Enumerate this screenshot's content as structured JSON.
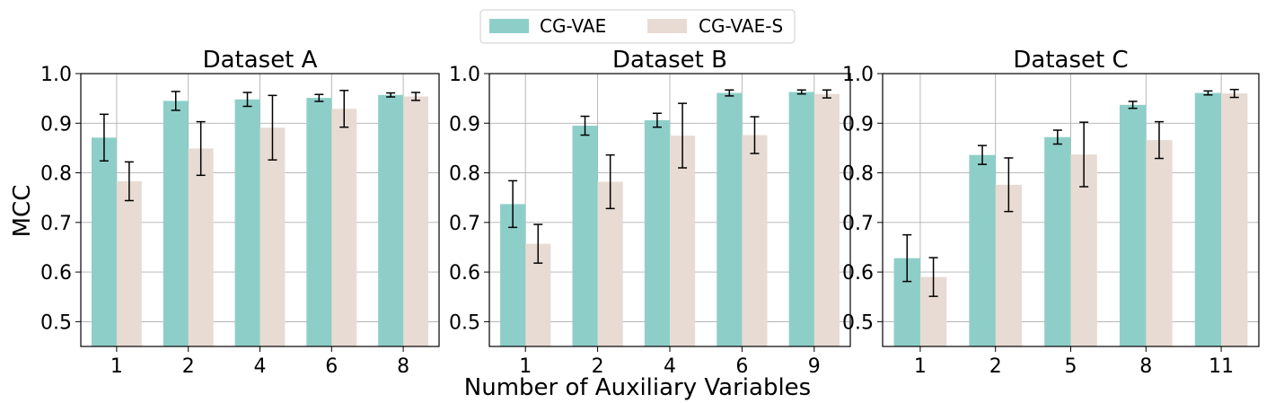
{
  "legend": {
    "items": [
      {
        "label": "CG-VAE",
        "color": "#8dcfc8"
      },
      {
        "label": "CG-VAE-S",
        "color": "#e8dbd3"
      }
    ]
  },
  "xlabel": "Number of Auxiliary Variables",
  "ylabel": "MCC",
  "chart_data": [
    {
      "type": "bar",
      "title": "Dataset A",
      "categories": [
        "1",
        "2",
        "4",
        "6",
        "8"
      ],
      "ylim": [
        0.45,
        1.0
      ],
      "yticks": [
        "0.5",
        "0.6",
        "0.7",
        "0.8",
        "0.9",
        "1.0"
      ],
      "grid": true,
      "series": [
        {
          "name": "CG-VAE",
          "color": "#8dcfc8",
          "values": [
            0.871,
            0.945,
            0.948,
            0.951,
            0.957
          ],
          "errors": [
            0.047,
            0.019,
            0.014,
            0.007,
            0.004
          ]
        },
        {
          "name": "CG-VAE-S",
          "color": "#e8dbd3",
          "values": [
            0.783,
            0.849,
            0.891,
            0.929,
            0.954
          ],
          "errors": [
            0.039,
            0.054,
            0.065,
            0.037,
            0.008
          ]
        }
      ]
    },
    {
      "type": "bar",
      "title": "Dataset B",
      "categories": [
        "1",
        "2",
        "4",
        "6",
        "9"
      ],
      "ylim": [
        0.45,
        1.0
      ],
      "yticks": [
        "0.5",
        "0.6",
        "0.7",
        "0.8",
        "0.9",
        "1.0"
      ],
      "grid": true,
      "series": [
        {
          "name": "CG-VAE",
          "color": "#8dcfc8",
          "values": [
            0.737,
            0.895,
            0.906,
            0.961,
            0.963
          ],
          "errors": [
            0.047,
            0.019,
            0.014,
            0.006,
            0.004
          ]
        },
        {
          "name": "CG-VAE-S",
          "color": "#e8dbd3",
          "values": [
            0.657,
            0.782,
            0.875,
            0.876,
            0.959
          ],
          "errors": [
            0.039,
            0.054,
            0.065,
            0.037,
            0.008
          ]
        }
      ]
    },
    {
      "type": "bar",
      "title": "Dataset C",
      "categories": [
        "1",
        "2",
        "5",
        "8",
        "11"
      ],
      "ylim": [
        0.45,
        1.0
      ],
      "yticks": [
        "0.5",
        "0.6",
        "0.7",
        "0.8",
        "0.9",
        "1.0"
      ],
      "grid": true,
      "series": [
        {
          "name": "CG-VAE",
          "color": "#8dcfc8",
          "values": [
            0.628,
            0.836,
            0.872,
            0.937,
            0.961
          ],
          "errors": [
            0.047,
            0.019,
            0.014,
            0.007,
            0.004
          ]
        },
        {
          "name": "CG-VAE-S",
          "color": "#e8dbd3",
          "values": [
            0.59,
            0.776,
            0.837,
            0.866,
            0.96
          ],
          "errors": [
            0.039,
            0.054,
            0.065,
            0.037,
            0.008
          ]
        }
      ]
    }
  ]
}
